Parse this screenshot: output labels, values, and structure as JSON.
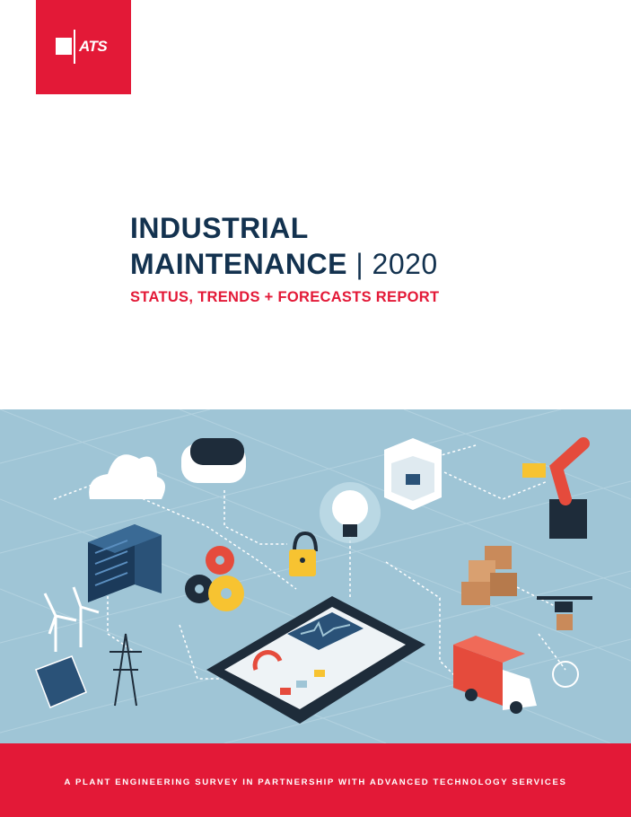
{
  "logo": {
    "text": "ATS"
  },
  "title": {
    "line1": "INDUSTRIAL",
    "line2": "MAINTENANCE",
    "separator": "|",
    "year": "2020"
  },
  "subtitle": "STATUS, TRENDS + FORECASTS REPORT",
  "footer": "A PLANT ENGINEERING SURVEY IN PARTNERSHIP WITH ADVANCED TECHNOLOGY SERVICES",
  "colors": {
    "brand_red": "#e31937",
    "navy": "#13324f",
    "illustration_bg": "#9fc5d6"
  }
}
